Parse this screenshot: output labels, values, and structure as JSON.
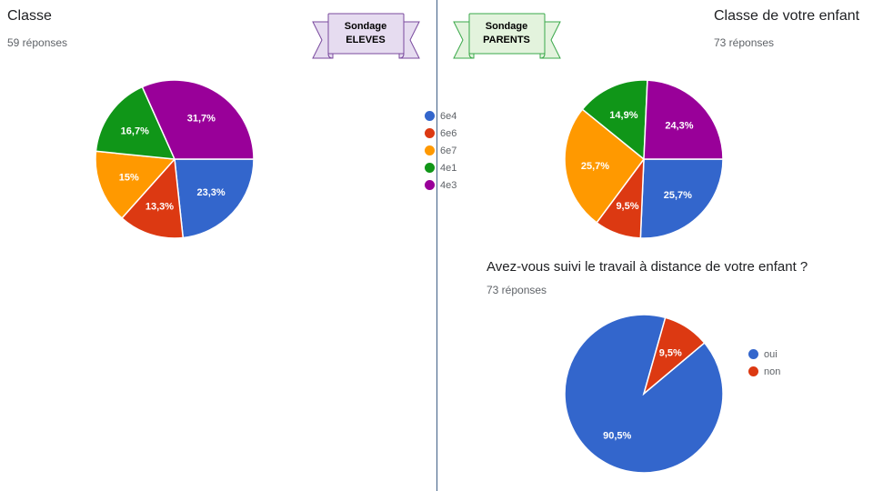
{
  "banners": {
    "left": {
      "line1": "Sondage",
      "line2": "ELEVES",
      "fill": "#e6dcf0",
      "stroke": "#7a4a9e"
    },
    "right": {
      "line1": "Sondage",
      "line2": "PARENTS",
      "fill": "#e3f3dd",
      "stroke": "#3aa84a"
    }
  },
  "chart_data": [
    {
      "type": "pie",
      "title": "Classe",
      "subtitle": "59 réponses",
      "series": [
        {
          "name": "6e4",
          "value": 23.3,
          "label": "23,3%",
          "color": "#3366cc"
        },
        {
          "name": "6e6",
          "value": 13.3,
          "label": "13,3%",
          "color": "#dc3912"
        },
        {
          "name": "6e7",
          "value": 15,
          "label": "15%",
          "color": "#ff9900"
        },
        {
          "name": "4e1",
          "value": 16.7,
          "label": "16,7%",
          "color": "#109618"
        },
        {
          "name": "4e3",
          "value": 31.7,
          "label": "31,7%",
          "color": "#990099"
        }
      ],
      "legend": "right"
    },
    {
      "type": "pie",
      "title": "Classe de votre enfant",
      "subtitle": "73 réponses",
      "series": [
        {
          "name": "6e4",
          "value": 25.7,
          "label": "25,7%",
          "color": "#3366cc"
        },
        {
          "name": "6e6",
          "value": 9.5,
          "label": "9,5%",
          "color": "#dc3912"
        },
        {
          "name": "6e7",
          "value": 25.7,
          "label": "25,7%",
          "color": "#ff9900"
        },
        {
          "name": "4e1",
          "value": 14.9,
          "label": "14,9%",
          "color": "#109618"
        },
        {
          "name": "4e3",
          "value": 24.3,
          "label": "24,3%",
          "color": "#990099"
        }
      ],
      "legend": "shared"
    },
    {
      "type": "pie",
      "title": "Avez-vous suivi le travail à distance de votre enfant ?",
      "subtitle": "73 réponses",
      "series": [
        {
          "name": "oui",
          "value": 90.5,
          "label": "90,5%",
          "color": "#3366cc"
        },
        {
          "name": "non",
          "value": 9.5,
          "label": "9,5%",
          "color": "#dc3912"
        }
      ],
      "legend": "right"
    }
  ]
}
